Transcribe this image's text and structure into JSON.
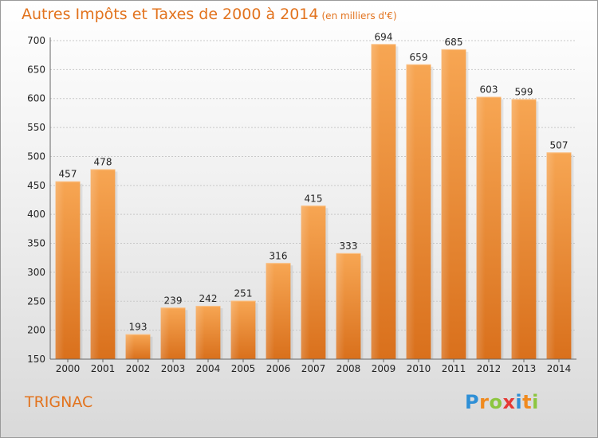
{
  "chart_data": {
    "type": "bar",
    "title": "Autres Impôts et Taxes de 2000 à 2014",
    "unit_label": "(en milliers d'€)",
    "categories": [
      "2000",
      "2001",
      "2002",
      "2003",
      "2004",
      "2005",
      "2006",
      "2007",
      "2008",
      "2009",
      "2010",
      "2011",
      "2012",
      "2013",
      "2014"
    ],
    "values": [
      457,
      478,
      193,
      239,
      242,
      251,
      316,
      415,
      333,
      694,
      659,
      685,
      603,
      599,
      507
    ],
    "ylim": [
      150,
      700
    ],
    "yticks": [
      150,
      200,
      250,
      300,
      350,
      400,
      450,
      500,
      550,
      600,
      650,
      700
    ],
    "grid": true,
    "bar_color": "#f0923a"
  },
  "footer": {
    "city": "TRIGNAC",
    "logo_letters": [
      {
        "ch": "P",
        "color": "#2e8fd6"
      },
      {
        "ch": "r",
        "color": "#f08a1e"
      },
      {
        "ch": "o",
        "color": "#8cc63f"
      },
      {
        "ch": "x",
        "color": "#e53935"
      },
      {
        "ch": "i",
        "color": "#2e8fd6"
      },
      {
        "ch": "t",
        "color": "#f08a1e"
      },
      {
        "ch": "i",
        "color": "#8cc63f"
      }
    ]
  }
}
